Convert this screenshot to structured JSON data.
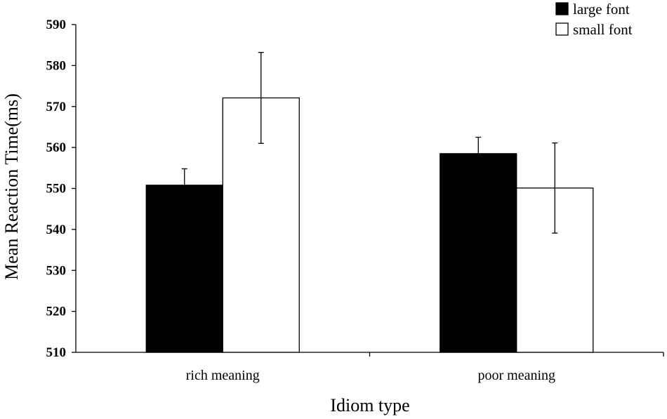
{
  "chart_data": {
    "type": "bar",
    "title": "",
    "xlabel": "Idiom type",
    "ylabel": "Mean Reaction Time(ms)",
    "ylim": [
      510,
      590
    ],
    "yticks": [
      510,
      520,
      530,
      540,
      550,
      560,
      570,
      580,
      590
    ],
    "categories": [
      "rich meaning",
      "poor meaning"
    ],
    "series": [
      {
        "name": "large font",
        "values": [
          550.8,
          558.5
        ],
        "errors": [
          4.0,
          4.0
        ],
        "fill": "#000000"
      },
      {
        "name": "small font",
        "values": [
          572.1,
          550.1
        ],
        "errors": [
          11.1,
          11.0
        ],
        "fill": "#ffffff"
      }
    ],
    "grid": false,
    "legend": "top-right"
  }
}
